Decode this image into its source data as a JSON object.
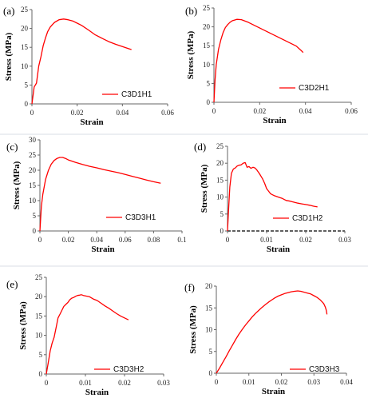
{
  "colors": {
    "series": "#ff0000",
    "axis": "#666666",
    "text": "#000000"
  },
  "chart_data": [
    {
      "panel_label": "(a)",
      "type": "line",
      "xlabel": "Strain",
      "ylabel": "Stress (MPa)",
      "xlim": [
        0,
        0.06
      ],
      "ylim": [
        0,
        25
      ],
      "xticks": [
        "0",
        "0.02",
        "0.04",
        "0.06"
      ],
      "yticks": [
        "0",
        "5",
        "10",
        "15",
        "20",
        "25"
      ],
      "series": [
        {
          "name": "C3D1H1",
          "x": [
            0,
            0.001,
            0.002,
            0.003,
            0.004,
            0.005,
            0.006,
            0.007,
            0.008,
            0.009,
            0.01,
            0.012,
            0.014,
            0.016,
            0.018,
            0.02,
            0.022,
            0.025,
            0.028,
            0.031,
            0.034,
            0.037,
            0.04,
            0.043,
            0.044
          ],
          "y": [
            0,
            4.5,
            5.5,
            10,
            12.5,
            15.5,
            17.5,
            19.2,
            20.3,
            21.0,
            21.6,
            22.3,
            22.5,
            22.3,
            22.0,
            21.4,
            20.8,
            19.6,
            18.3,
            17.4,
            16.5,
            15.8,
            15.2,
            14.6,
            14.4
          ]
        }
      ]
    },
    {
      "panel_label": "(b)",
      "type": "line",
      "xlabel": "Strain",
      "ylabel": "Stress (MPa)",
      "xlim": [
        0,
        0.06
      ],
      "ylim": [
        0,
        25
      ],
      "xticks": [
        "0",
        "0.02",
        "0.04",
        "0.06"
      ],
      "yticks": [
        "0",
        "5",
        "10",
        "15",
        "20",
        "25"
      ],
      "series": [
        {
          "name": "C3D2H1",
          "x": [
            0,
            0.0005,
            0.001,
            0.002,
            0.003,
            0.004,
            0.005,
            0.006,
            0.007,
            0.008,
            0.01,
            0.012,
            0.015,
            0.018,
            0.021,
            0.024,
            0.027,
            0.03,
            0.033,
            0.036,
            0.038,
            0.039
          ],
          "y": [
            0,
            6,
            10,
            14,
            16.5,
            18.5,
            19.8,
            20.6,
            21.2,
            21.6,
            22.0,
            21.9,
            21.2,
            20.3,
            19.4,
            18.5,
            17.6,
            16.7,
            15.8,
            14.9,
            13.8,
            13.2
          ]
        }
      ]
    },
    {
      "panel_label": "(c)",
      "type": "line",
      "xlabel": "Strain",
      "ylabel": "Stress (MPa)",
      "xlim": [
        0,
        0.1
      ],
      "ylim": [
        0,
        30
      ],
      "xticks": [
        "0",
        "0.02",
        "0.04",
        "0.06",
        "0.08",
        "0.1"
      ],
      "yticks": [
        "0",
        "5",
        "10",
        "15",
        "20",
        "25",
        "30"
      ],
      "series": [
        {
          "name": "C3D3H1",
          "x": [
            0,
            0.001,
            0.002,
            0.004,
            0.006,
            0.008,
            0.01,
            0.012,
            0.014,
            0.016,
            0.018,
            0.02,
            0.025,
            0.03,
            0.035,
            0.04,
            0.045,
            0.05,
            0.055,
            0.06,
            0.065,
            0.07,
            0.075,
            0.08,
            0.085
          ],
          "y": [
            0,
            8,
            12,
            17,
            20,
            22,
            23.2,
            23.9,
            24.2,
            24.2,
            23.9,
            23.4,
            22.6,
            21.9,
            21.3,
            20.8,
            20.2,
            19.7,
            19.2,
            18.6,
            18.0,
            17.4,
            16.8,
            16.2,
            15.7
          ]
        }
      ]
    },
    {
      "panel_label": "(d)",
      "type": "line",
      "xlabel": "Strain",
      "ylabel": "Stress (MPa)",
      "xlim": [
        0,
        0.03
      ],
      "ylim": [
        0,
        25
      ],
      "xticks": [
        "0",
        "0.01",
        "0.02",
        "0.03"
      ],
      "yticks": [
        "0",
        "5",
        "10",
        "15",
        "20",
        "25"
      ],
      "series": [
        {
          "name": "C3D1H2",
          "x": [
            0,
            0.0003,
            0.0006,
            0.001,
            0.0015,
            0.002,
            0.0025,
            0.003,
            0.0035,
            0.004,
            0.0045,
            0.005,
            0.0055,
            0.006,
            0.0065,
            0.007,
            0.0075,
            0.008,
            0.0085,
            0.009,
            0.0095,
            0.01,
            0.011,
            0.012,
            0.013,
            0.014,
            0.015,
            0.016,
            0.017,
            0.018,
            0.019,
            0.02,
            0.021,
            0.022,
            0.023
          ],
          "y": [
            0,
            7,
            13,
            17,
            18.3,
            18.6,
            19.2,
            19.4,
            19.5,
            20.0,
            20.2,
            18.8,
            19.0,
            18.5,
            18.8,
            18.6,
            18.0,
            17.2,
            16.3,
            15.3,
            14.0,
            12.5,
            11.0,
            10.4,
            10.0,
            9.6,
            9.0,
            8.8,
            8.5,
            8.2,
            8.0,
            7.8,
            7.6,
            7.3,
            7.1
          ]
        }
      ]
    },
    {
      "panel_label": "(e)",
      "type": "line",
      "xlabel": "Strain",
      "ylabel": "Stress (MPa)",
      "xlim": [
        0,
        0.03
      ],
      "ylim": [
        0,
        25
      ],
      "xticks": [
        "0",
        "0.01",
        "0.02",
        "0.03"
      ],
      "yticks": [
        "0",
        "5",
        "10",
        "15",
        "20",
        "25"
      ],
      "series": [
        {
          "name": "C3D3H2",
          "x": [
            0,
            0.0005,
            0.001,
            0.0015,
            0.002,
            0.0025,
            0.003,
            0.0035,
            0.004,
            0.0045,
            0.005,
            0.0055,
            0.006,
            0.0065,
            0.007,
            0.0075,
            0.008,
            0.0085,
            0.009,
            0.0095,
            0.01,
            0.011,
            0.012,
            0.013,
            0.014,
            0.015,
            0.016,
            0.017,
            0.018,
            0.019,
            0.02,
            0.021
          ],
          "y": [
            0,
            3,
            6,
            8,
            9.5,
            12,
            14.5,
            15.5,
            16.5,
            17.5,
            18.0,
            18.5,
            19.2,
            19.6,
            19.8,
            20.1,
            20.3,
            20.4,
            20.5,
            20.3,
            20.2,
            20.0,
            19.4,
            19.0,
            18.3,
            17.6,
            17.0,
            16.3,
            15.6,
            15.0,
            14.5,
            14.0
          ]
        }
      ]
    },
    {
      "panel_label": "(f)",
      "type": "line",
      "xlabel": "Strain",
      "ylabel": "Stress (MPa)",
      "xlim": [
        0,
        0.04
      ],
      "ylim": [
        0,
        20
      ],
      "xticks": [
        "0",
        "0.01",
        "0.02",
        "0.03",
        "0.04"
      ],
      "yticks": [
        "0",
        "5",
        "10",
        "15",
        "20"
      ],
      "series": [
        {
          "name": "C3D3H3",
          "x": [
            0,
            0.001,
            0.002,
            0.003,
            0.004,
            0.005,
            0.006,
            0.007,
            0.008,
            0.009,
            0.01,
            0.011,
            0.012,
            0.013,
            0.014,
            0.015,
            0.016,
            0.017,
            0.018,
            0.019,
            0.02,
            0.021,
            0.022,
            0.023,
            0.024,
            0.025,
            0.026,
            0.027,
            0.028,
            0.029,
            0.03,
            0.031,
            0.032,
            0.033,
            0.0335,
            0.0338,
            0.034
          ],
          "y": [
            0,
            1.2,
            2.5,
            3.8,
            5.2,
            6.5,
            7.8,
            9.0,
            10.1,
            11.1,
            12.0,
            12.9,
            13.7,
            14.4,
            15.1,
            15.7,
            16.3,
            16.8,
            17.3,
            17.7,
            18.0,
            18.3,
            18.5,
            18.7,
            18.8,
            18.9,
            18.8,
            18.6,
            18.4,
            18.2,
            17.8,
            17.4,
            16.8,
            16.0,
            15.2,
            14.5,
            13.5
          ]
        }
      ]
    }
  ]
}
